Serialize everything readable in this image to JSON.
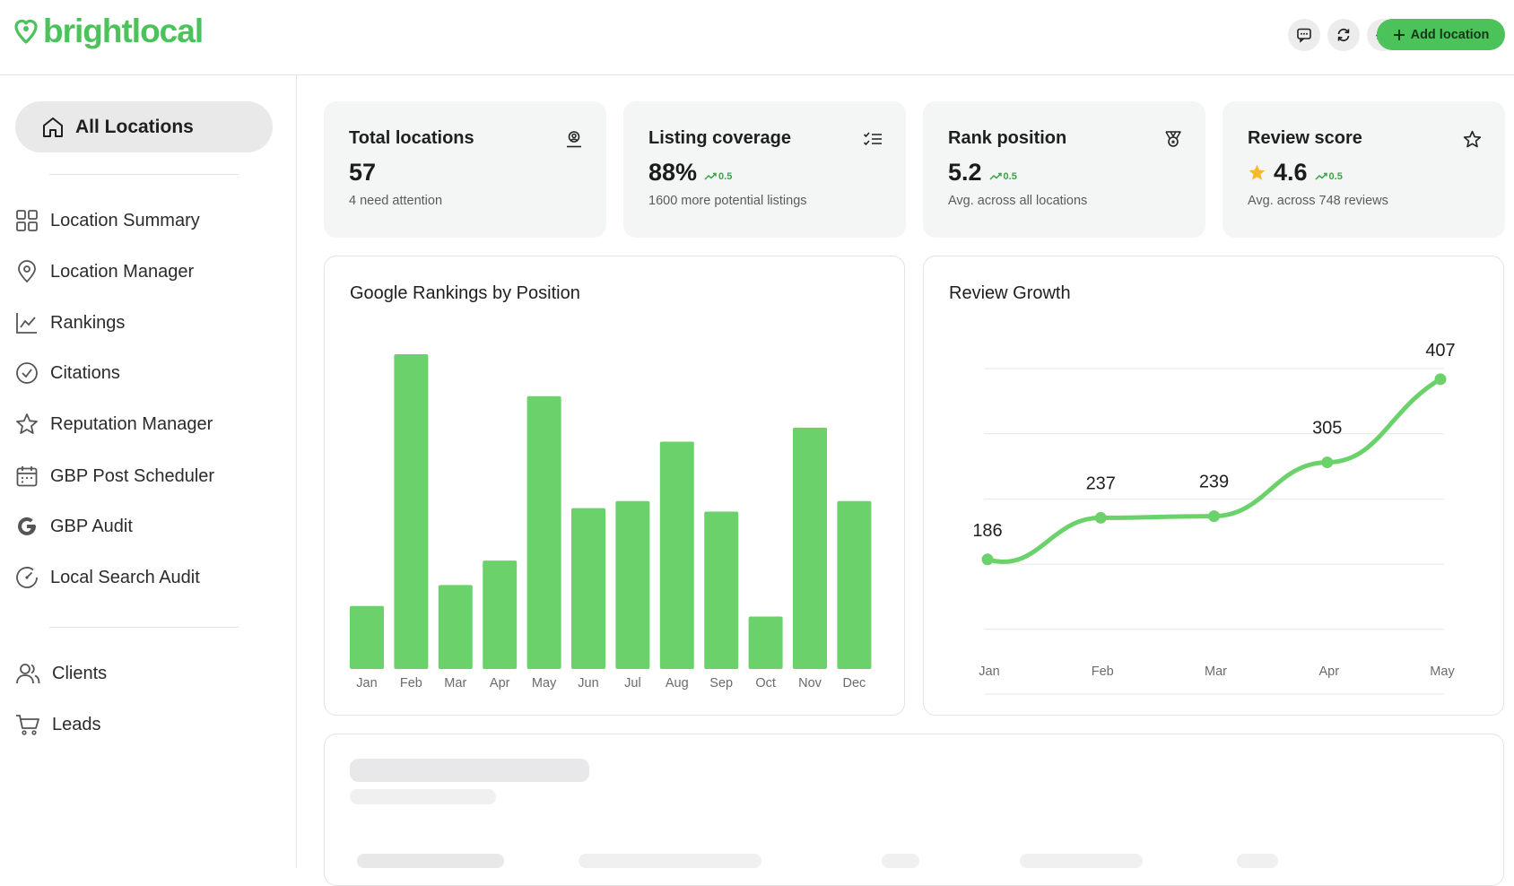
{
  "header": {
    "logo_text": "brightlocal",
    "icons": [
      "chat-icon",
      "refresh-icon",
      "settings-icon"
    ],
    "add_button_label": "Add location",
    "accent_color": "#4cc25a"
  },
  "sidebar": {
    "all_locations_label": "All Locations",
    "items": [
      {
        "label": "Location Summary",
        "icon": "grid-icon"
      },
      {
        "label": "Location Manager",
        "icon": "map-pin-icon"
      },
      {
        "label": "Rankings",
        "icon": "line-chart-icon"
      },
      {
        "label": "Citations",
        "icon": "check-circle-icon"
      },
      {
        "label": "Reputation Manager",
        "icon": "star-icon"
      },
      {
        "label": "GBP Post Scheduler",
        "icon": "calendar-icon"
      },
      {
        "label": "GBP Audit",
        "icon": "google-icon"
      },
      {
        "label": "Local Search Audit",
        "icon": "gauge-icon"
      }
    ],
    "secondary_items": [
      {
        "label": "Clients",
        "icon": "users-icon"
      },
      {
        "label": "Leads",
        "icon": "cart-icon"
      }
    ]
  },
  "stats": [
    {
      "title": "Total locations",
      "value": "57",
      "trend": "",
      "subtitle": "4 need attention",
      "icon": "location-user-icon"
    },
    {
      "title": "Listing coverage",
      "value": "88%",
      "trend": "0.5",
      "subtitle": "1600 more potential listings",
      "icon": "checklist-icon"
    },
    {
      "title": "Rank position",
      "value": "5.2",
      "trend": "0.5",
      "subtitle": "Avg. across all locations",
      "icon": "medal-icon"
    },
    {
      "title": "Review score",
      "value": "4.6",
      "trend": "0.5",
      "subtitle": "Avg. across 748 reviews",
      "icon": "star-outline-icon"
    }
  ],
  "rankings_panel": {
    "title": "Google Rankings by Position"
  },
  "reviews_panel": {
    "title": "Review Growth"
  },
  "chart_data": [
    {
      "type": "bar",
      "title": "Google Rankings by Position",
      "categories": [
        "Jan",
        "Feb",
        "Mar",
        "Apr",
        "May",
        "Jun",
        "Jul",
        "Aug",
        "Sep",
        "Oct",
        "Nov",
        "Dec"
      ],
      "values": [
        18,
        90,
        24,
        31,
        78,
        46,
        48,
        65,
        45,
        15,
        69,
        48
      ],
      "color": "#6bd26b",
      "ylim": [
        0,
        100
      ],
      "grid": false
    },
    {
      "type": "line",
      "title": "Review Growth",
      "categories": [
        "Jan",
        "Feb",
        "Mar",
        "Apr",
        "May"
      ],
      "values": [
        186,
        237,
        239,
        305,
        407
      ],
      "data_labels": [
        "186",
        "237",
        "239",
        "305",
        "407"
      ],
      "color": "#6bd26b",
      "grid": true
    }
  ]
}
